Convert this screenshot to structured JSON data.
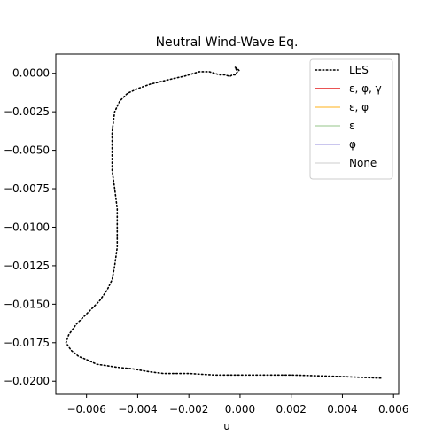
{
  "chart_data": {
    "type": "line",
    "title": "Neutral Wind-Wave Eq.",
    "xlabel": "u",
    "ylabel": "",
    "xlim": [
      -0.0072,
      0.0062
    ],
    "ylim": [
      -0.02085,
      0.00125
    ],
    "xticks": [
      -0.006,
      -0.004,
      -0.002,
      0.0,
      0.002,
      0.004,
      0.006
    ],
    "xtick_labels": [
      "−0.006",
      "−0.004",
      "−0.002",
      "0.000",
      "0.002",
      "0.004",
      "0.006"
    ],
    "yticks": [
      0.0,
      -0.0025,
      -0.005,
      -0.0075,
      -0.01,
      -0.0125,
      -0.015,
      -0.0175,
      -0.02
    ],
    "ytick_labels": [
      "0.0000",
      "−0.0025",
      "−0.0050",
      "−0.0075",
      "−0.0100",
      "−0.0125",
      "−0.0150",
      "−0.0175",
      "−0.0200"
    ],
    "grid": false,
    "legend_position": "top-right",
    "series": [
      {
        "name": "LES",
        "color": "#000000",
        "style": "dotted",
        "x": [
          0.0055,
          0.004,
          0.002,
          0.0,
          -0.001,
          -0.002,
          -0.003,
          -0.0035,
          -0.0042,
          -0.0048,
          -0.0052,
          -0.0056,
          -0.006,
          -0.0063,
          -0.0066,
          -0.0068,
          -0.0067,
          -0.0064,
          -0.0061,
          -0.0058,
          -0.0055,
          -0.0052,
          -0.005,
          -0.0049,
          -0.0048,
          -0.0048,
          -0.0048,
          -0.0049,
          -0.005,
          -0.005,
          -0.005,
          -0.0049,
          -0.0047,
          -0.0044,
          -0.004,
          -0.0035,
          -0.003,
          -0.0025,
          -0.0022,
          -0.002,
          -0.0018,
          -0.0016,
          -0.0014,
          -0.0012,
          -0.001,
          -0.0008,
          -0.0006,
          -0.0004,
          -0.0003,
          -0.0002,
          -0.0001,
          -0.0002,
          -0.0001,
          0.0
        ],
        "y": [
          -0.0198,
          -0.0197,
          -0.0196,
          -0.0196,
          -0.0196,
          -0.0195,
          -0.0195,
          -0.0194,
          -0.0192,
          -0.0191,
          -0.019,
          -0.0189,
          -0.0186,
          -0.0184,
          -0.018,
          -0.0175,
          -0.017,
          -0.0163,
          -0.0158,
          -0.0153,
          -0.0148,
          -0.0141,
          -0.0134,
          -0.0125,
          -0.0113,
          -0.01,
          -0.0088,
          -0.0075,
          -0.0063,
          -0.005,
          -0.0038,
          -0.0025,
          -0.0018,
          -0.0013,
          -0.001,
          -0.0007,
          -0.0005,
          -0.0003,
          -0.0002,
          -0.0001,
          0.0,
          0.0001,
          0.0001,
          0.0001,
          0.0,
          -0.0001,
          -0.0001,
          -0.0002,
          -0.0001,
          -0.0001,
          0.0001,
          0.0004,
          0.0003,
          0.0001
        ]
      }
    ],
    "legend": [
      {
        "label": "LES",
        "color": "#000000",
        "style": "dotted"
      },
      {
        "label": "ε, φ, γ",
        "color": "#e41a1c",
        "style": "solid"
      },
      {
        "label": "ε, φ",
        "color": "#ffcc66",
        "style": "solid"
      },
      {
        "label": "ε",
        "color": "#b8d8b0",
        "style": "solid"
      },
      {
        "label": "φ",
        "color": "#b8b4e8",
        "style": "solid"
      },
      {
        "label": "None",
        "color": "#dedede",
        "style": "solid"
      }
    ]
  }
}
